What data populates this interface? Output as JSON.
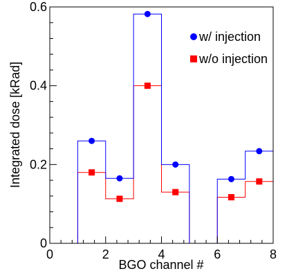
{
  "chart_data": {
    "type": "line",
    "xlabel": "BGO channel #",
    "ylabel": "Integrated dose [kRad]",
    "xlim": [
      0,
      8
    ],
    "ylim": [
      0,
      0.6
    ],
    "x_ticks": [
      "0",
      "2",
      "4",
      "6",
      "8"
    ],
    "y_ticks": [
      "0",
      "0.2",
      "0.4",
      "0.6"
    ],
    "bin_edges": [
      0,
      1,
      2,
      3,
      4,
      5,
      6,
      7,
      8
    ],
    "series": [
      {
        "name": "w/ injection",
        "color": "#0000ff",
        "marker": "circle",
        "bin_values": [
          0,
          0.26,
          0.165,
          0.582,
          0.2,
          0,
          0.163,
          0.234
        ],
        "points": [
          {
            "x": 1.5,
            "y": 0.26
          },
          {
            "x": 2.5,
            "y": 0.165
          },
          {
            "x": 3.5,
            "y": 0.582
          },
          {
            "x": 4.5,
            "y": 0.2
          },
          {
            "x": 6.5,
            "y": 0.163
          },
          {
            "x": 7.5,
            "y": 0.234
          }
        ]
      },
      {
        "name": "w/o injection",
        "color": "#ff0000",
        "marker": "square",
        "bin_values": [
          0,
          0.18,
          0.113,
          0.4,
          0.13,
          0,
          0.117,
          0.157
        ],
        "points": [
          {
            "x": 1.5,
            "y": 0.18
          },
          {
            "x": 2.5,
            "y": 0.113
          },
          {
            "x": 3.5,
            "y": 0.4
          },
          {
            "x": 4.5,
            "y": 0.13
          },
          {
            "x": 6.5,
            "y": 0.117
          },
          {
            "x": 7.5,
            "y": 0.157
          }
        ]
      }
    ],
    "legend_position": "top-right",
    "grid": false
  }
}
